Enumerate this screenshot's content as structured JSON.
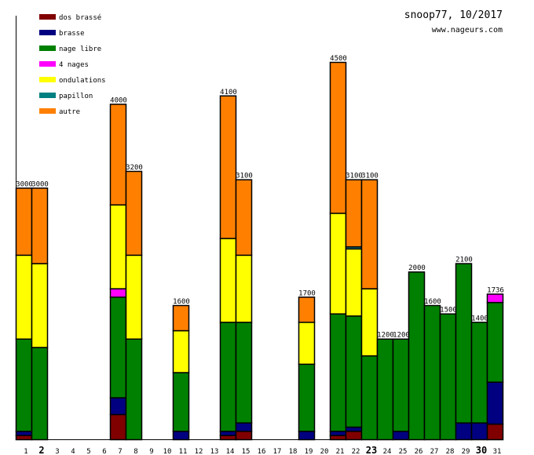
{
  "chart_data": {
    "type": "bar",
    "stacked": true,
    "title": "snoop77, 10/2017",
    "subtitle": "www.nageurs.com",
    "xlabel": "",
    "ylabel": "",
    "ylim": [
      0,
      4500
    ],
    "legend_position": "top-left",
    "legend": [
      {
        "name": "dos brassé",
        "color": "#800000"
      },
      {
        "name": "brasse",
        "color": "#000080"
      },
      {
        "name": "nage libre",
        "color": "#008000"
      },
      {
        "name": "4 nages",
        "color": "#ff00ff"
      },
      {
        "name": "ondulations",
        "color": "#ffff00"
      },
      {
        "name": "papillon",
        "color": "#008080"
      },
      {
        "name": "autre",
        "color": "#ff8000"
      }
    ],
    "categories": [
      "1",
      "2",
      "3",
      "4",
      "5",
      "6",
      "7",
      "8",
      "9",
      "10",
      "11",
      "12",
      "13",
      "14",
      "15",
      "16",
      "17",
      "18",
      "19",
      "20",
      "21",
      "22",
      "23",
      "24",
      "25",
      "26",
      "27",
      "28",
      "29",
      "30",
      "31"
    ],
    "bold_categories": [
      "2",
      "23",
      "30"
    ],
    "totals": [
      3000,
      3000,
      0,
      0,
      0,
      0,
      4000,
      3200,
      0,
      0,
      1600,
      0,
      0,
      4100,
      3100,
      0,
      0,
      0,
      1700,
      0,
      4500,
      3100,
      3100,
      1200,
      1200,
      2000,
      1600,
      1500,
      2100,
      1400,
      1736
    ],
    "series": [
      {
        "name": "dos brassé",
        "values": [
          50,
          0,
          0,
          0,
          0,
          0,
          300,
          0,
          0,
          0,
          0,
          0,
          0,
          50,
          100,
          0,
          0,
          0,
          0,
          0,
          50,
          100,
          0,
          0,
          0,
          0,
          0,
          0,
          0,
          0,
          186
        ]
      },
      {
        "name": "brasse",
        "values": [
          50,
          0,
          0,
          0,
          0,
          0,
          200,
          0,
          0,
          0,
          100,
          0,
          0,
          50,
          100,
          0,
          0,
          0,
          100,
          0,
          50,
          50,
          0,
          0,
          100,
          0,
          0,
          0,
          200,
          200,
          500
        ]
      },
      {
        "name": "nage libre",
        "values": [
          1100,
          1100,
          0,
          0,
          0,
          0,
          1200,
          1200,
          0,
          0,
          700,
          0,
          0,
          1300,
          1200,
          0,
          0,
          0,
          800,
          0,
          1400,
          1325,
          1000,
          1200,
          1100,
          2000,
          1600,
          1500,
          1900,
          1200,
          950
        ]
      },
      {
        "name": "4 nages",
        "values": [
          0,
          0,
          0,
          0,
          0,
          0,
          100,
          0,
          0,
          0,
          0,
          0,
          0,
          0,
          0,
          0,
          0,
          0,
          0,
          0,
          0,
          0,
          0,
          0,
          0,
          0,
          0,
          0,
          0,
          0,
          100
        ]
      },
      {
        "name": "ondulations",
        "values": [
          1000,
          1000,
          0,
          0,
          0,
          0,
          1000,
          1000,
          0,
          0,
          500,
          0,
          0,
          1000,
          800,
          0,
          0,
          0,
          500,
          0,
          1200,
          800,
          800,
          0,
          0,
          0,
          0,
          0,
          0,
          0,
          0
        ]
      },
      {
        "name": "papillon",
        "values": [
          0,
          0,
          0,
          0,
          0,
          0,
          0,
          0,
          0,
          0,
          0,
          0,
          0,
          0,
          0,
          0,
          0,
          0,
          0,
          0,
          0,
          25,
          0,
          0,
          0,
          0,
          0,
          0,
          0,
          0,
          0
        ]
      },
      {
        "name": "autre",
        "values": [
          800,
          900,
          0,
          0,
          0,
          0,
          1200,
          1000,
          0,
          0,
          300,
          0,
          0,
          1700,
          900,
          0,
          0,
          0,
          300,
          0,
          1800,
          800,
          1300,
          0,
          0,
          0,
          0,
          0,
          0,
          0,
          0
        ]
      }
    ]
  }
}
